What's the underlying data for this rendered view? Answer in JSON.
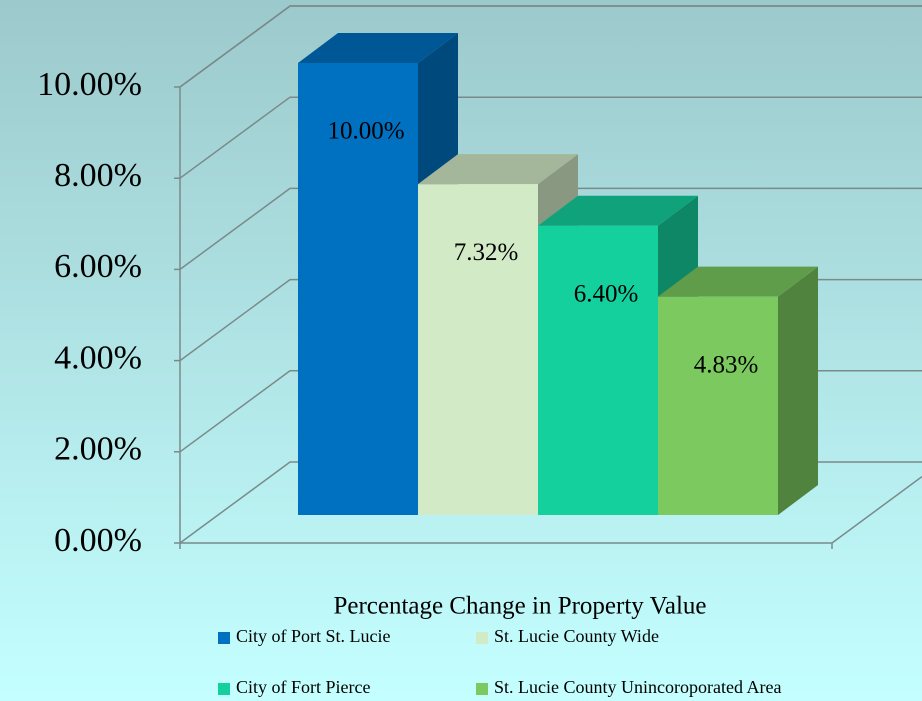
{
  "chart_data": {
    "type": "bar3d",
    "categories": [
      "Percentage Change in Property Value"
    ],
    "series": [
      {
        "name": "City of Port St. Lucie",
        "color": "#0070c0",
        "values": [
          10
        ],
        "value_labels": [
          "10.00%"
        ]
      },
      {
        "name": "St. Lucie County Wide",
        "color": "#d2ebc6",
        "values": [
          7.32
        ],
        "value_labels": [
          "7.32%"
        ]
      },
      {
        "name": "City of Fort Pierce",
        "color": "#14d09d",
        "values": [
          6.4
        ],
        "value_labels": [
          "6.40%"
        ]
      },
      {
        "name": "St. Lucie County Unincoroporated Area",
        "color": "#7bc95f",
        "values": [
          4.83
        ],
        "value_labels": [
          "4.83%"
        ]
      }
    ],
    "ylim": [
      0,
      10
    ],
    "yticks": [
      {
        "value": 0,
        "label": "0.00%"
      },
      {
        "value": 2,
        "label": "2.00%"
      },
      {
        "value": 4,
        "label": "4.00%"
      },
      {
        "value": 6,
        "label": "6.00%"
      },
      {
        "value": 8,
        "label": "8.00%"
      },
      {
        "value": 10,
        "label": "10.00%"
      }
    ],
    "grid": true
  }
}
